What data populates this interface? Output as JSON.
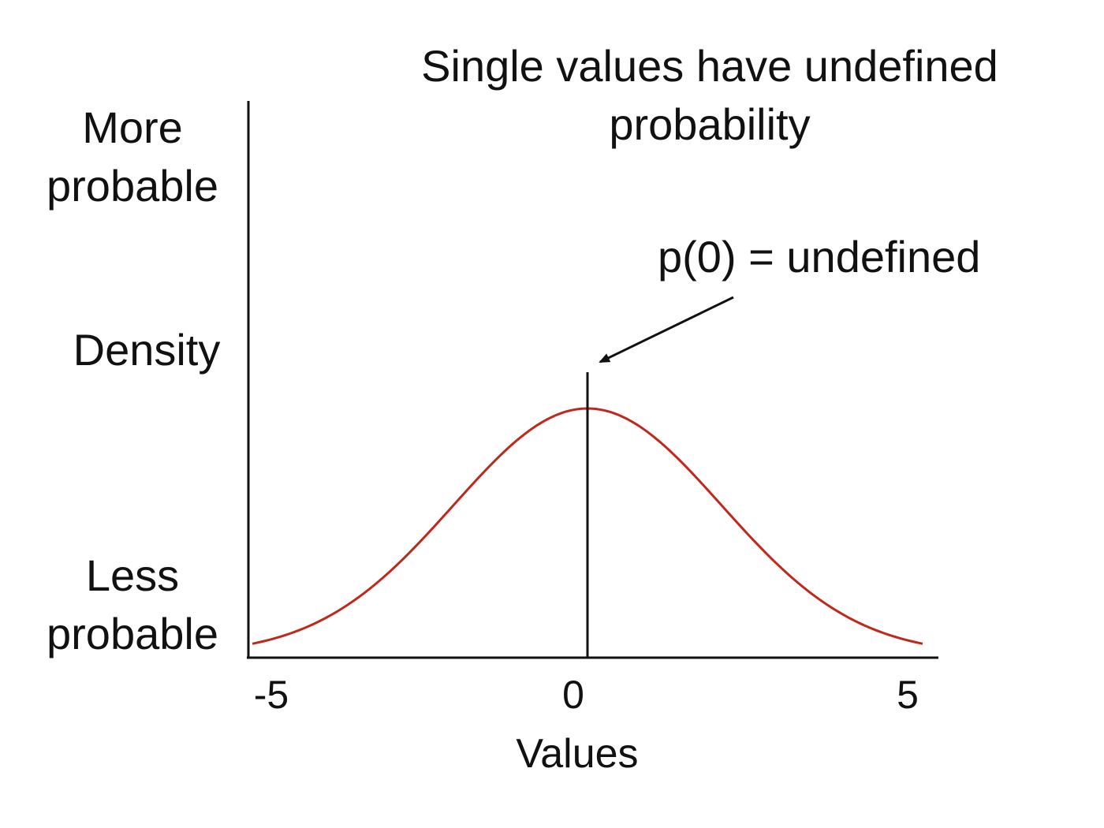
{
  "chart_data": {
    "type": "line",
    "title_lines": [
      "Single values have undefined",
      "probability"
    ],
    "xlabel": "Values",
    "ylabel_top_lines": [
      "More",
      "probable"
    ],
    "ylabel_middle": "Density",
    "ylabel_bottom_lines": [
      "Less",
      "probable"
    ],
    "xlim": [
      -5,
      5
    ],
    "x_ticks": [
      -5,
      0,
      5
    ],
    "x_tick_labels": [
      "-5",
      "0",
      "5"
    ],
    "curve": {
      "distribution": "normal",
      "mean": 0,
      "sd": 2,
      "color": "#c0281b"
    },
    "marker_line_x": 0,
    "annotation": {
      "text": "p(0) = undefined",
      "points_to_x": 0
    },
    "grid": false,
    "legend": "none"
  }
}
